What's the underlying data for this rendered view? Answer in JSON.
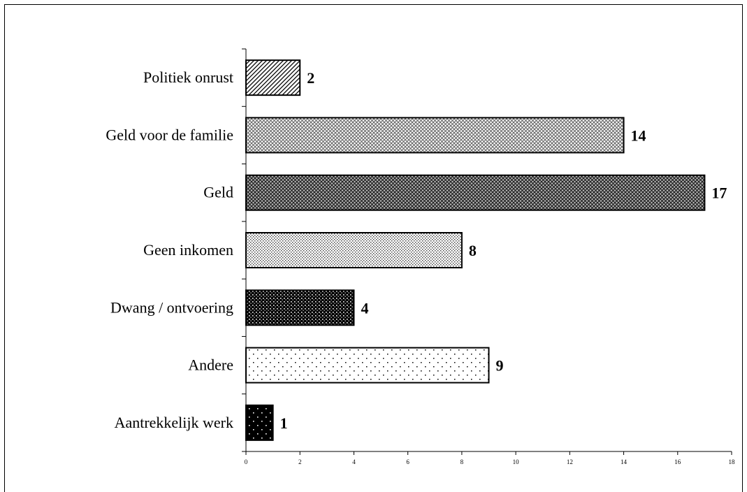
{
  "chart_data": {
    "type": "bar",
    "orientation": "horizontal",
    "categories": [
      "Politiek onrust",
      "Geld voor de familie",
      "Geld",
      "Geen inkomen",
      "Dwang / ontvoering",
      "Andere",
      "Aantrekkelijk werk"
    ],
    "values": [
      2,
      14,
      17,
      8,
      4,
      9,
      1
    ],
    "value_labels": [
      "2",
      "14",
      "17",
      "8",
      "4",
      "9",
      "1"
    ],
    "xlim": [
      0,
      18
    ],
    "x_ticks": [
      0,
      2,
      4,
      6,
      8,
      10,
      12,
      14,
      16,
      18
    ],
    "x_tick_labels": [
      "0",
      "2",
      "4",
      "6",
      "8",
      "10",
      "12",
      "14",
      "16",
      "18"
    ],
    "title": "",
    "xlabel": "",
    "ylabel": "",
    "grid": false,
    "legend": "none",
    "bar_patterns": [
      "diagonal-hatch",
      "fine-crosshatch-light",
      "fine-crosshatch-dark",
      "fine-dots",
      "dense-dots-dark",
      "sparse-dots",
      "sparse-dots-dark"
    ]
  }
}
